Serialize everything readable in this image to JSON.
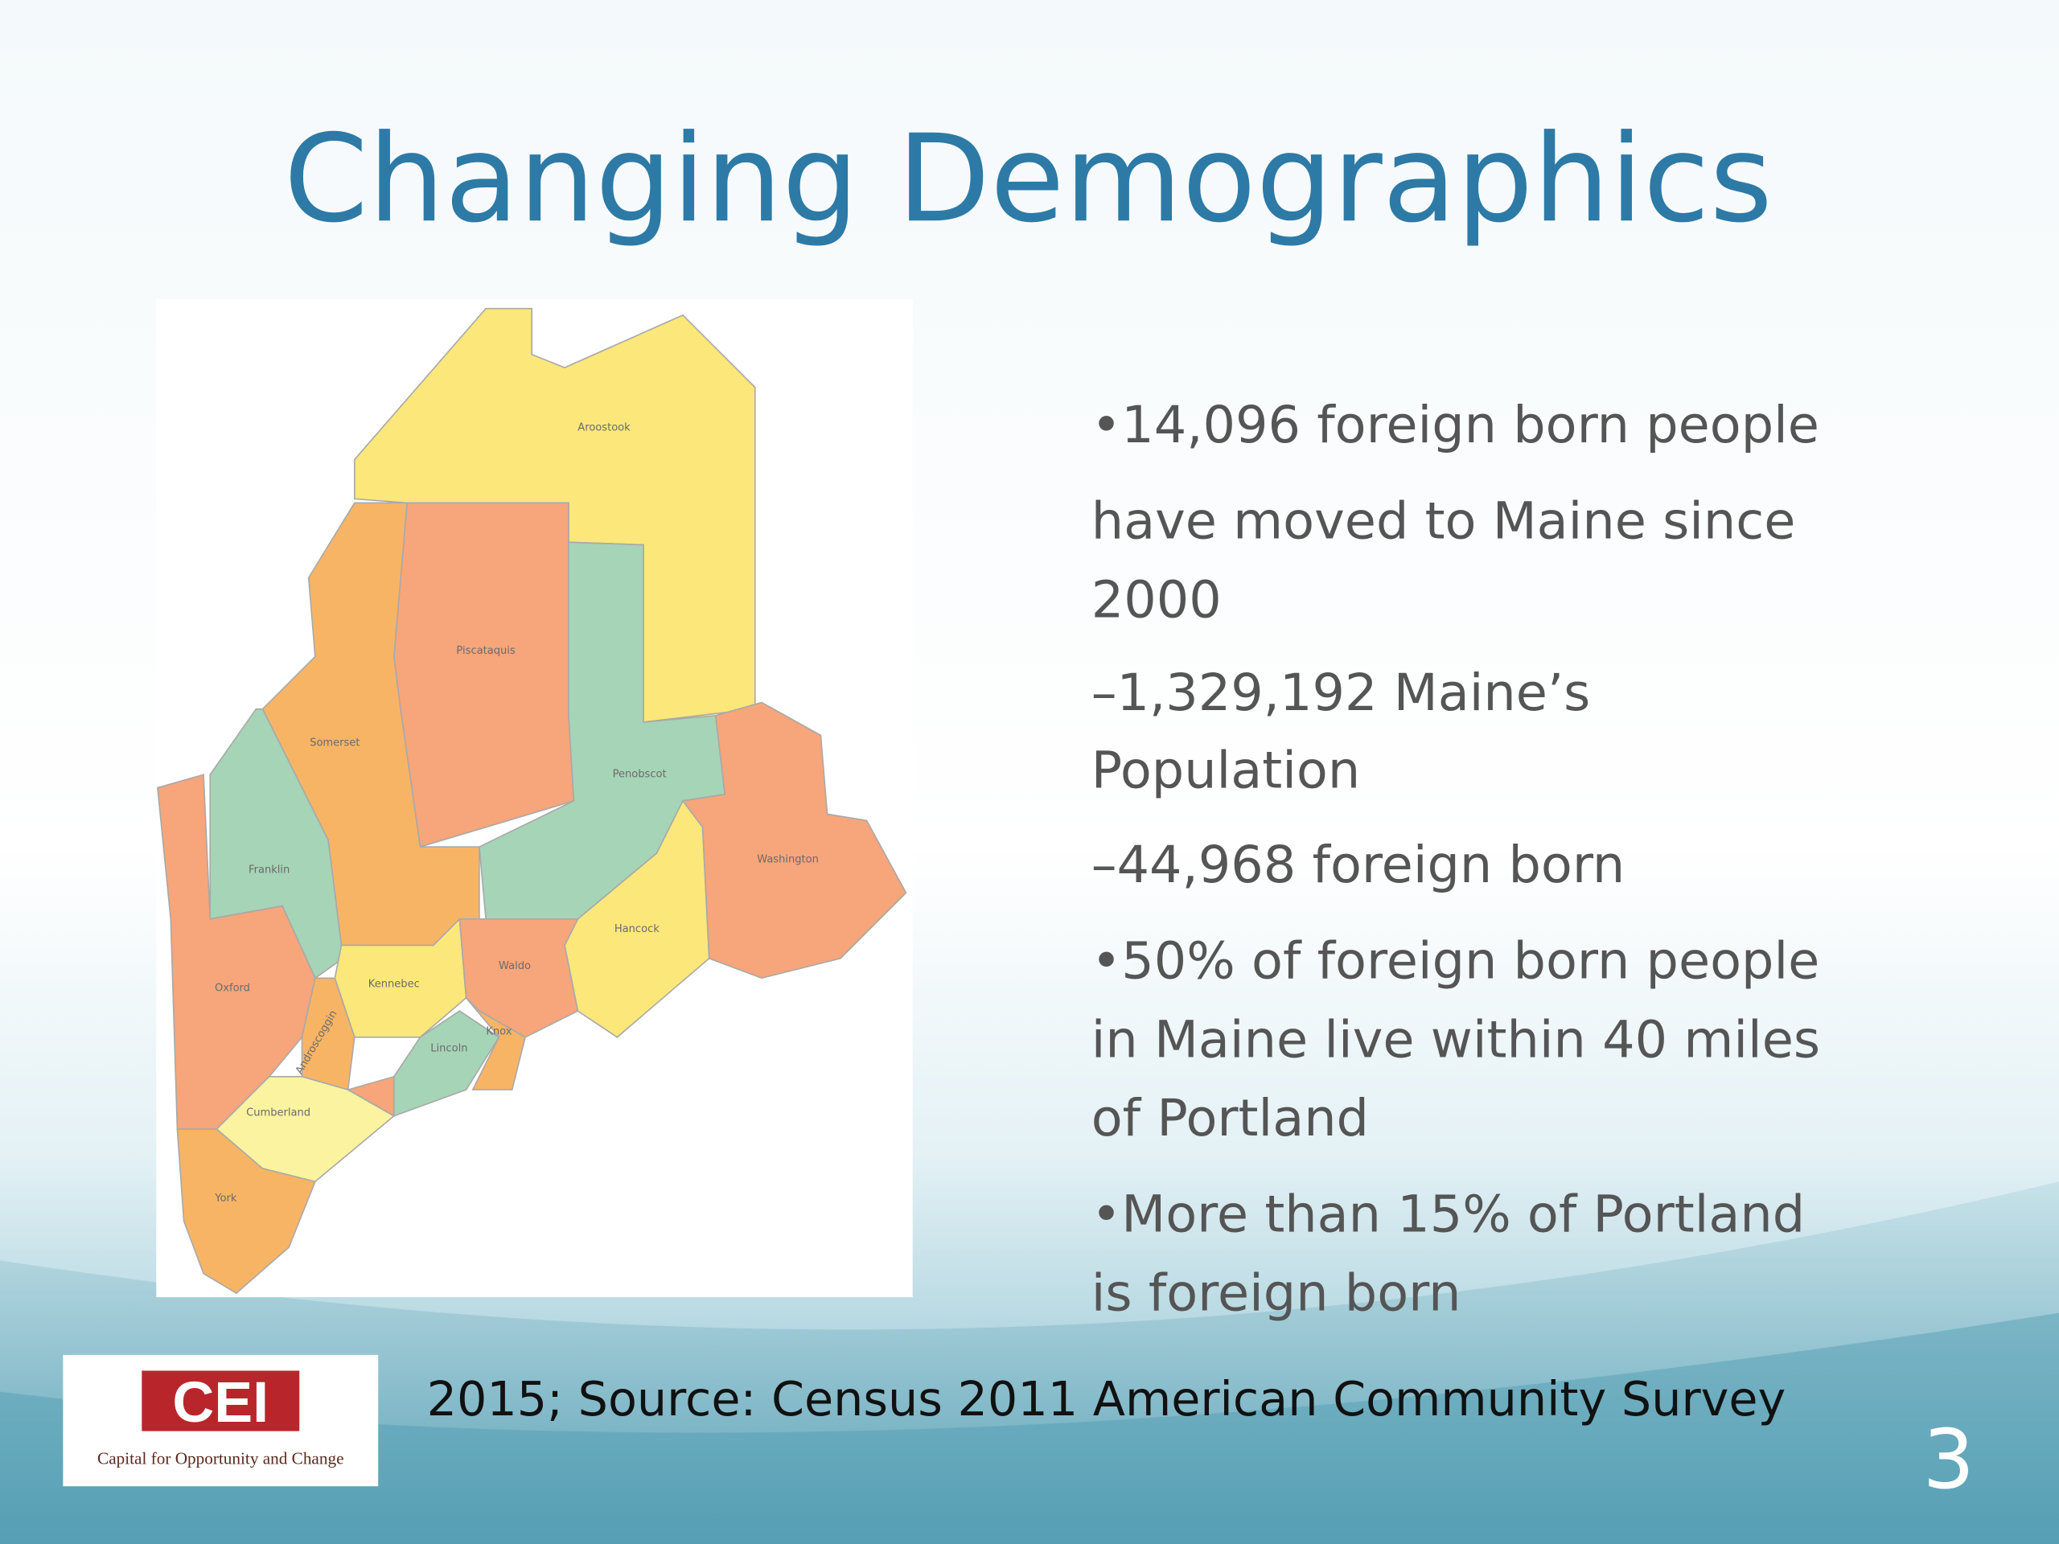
{
  "title": "Changing Demographics",
  "map": {
    "counties": [
      "Aroostook",
      "Piscataquis",
      "Somerset",
      "Penobscot",
      "Franklin",
      "Washington",
      "Oxford",
      "Hancock",
      "Kennebec",
      "Waldo",
      "Androscoggin",
      "Lincoln",
      "Knox",
      "Cumberland",
      "York"
    ]
  },
  "bullets": [
    {
      "lines": [
        "•14,096 foreign born people",
        "have moved to Maine since",
        "2000"
      ]
    },
    {
      "lines": [
        "–1,329,192 Maine’s",
        "Population"
      ]
    },
    {
      "lines": [
        "–44,968 foreign born"
      ]
    },
    {
      "lines": [
        "•50% of foreign born people",
        "in Maine live within 40 miles",
        "of Portland"
      ]
    },
    {
      "lines": [
        "•More than 15% of Portland",
        "is foreign born"
      ]
    }
  ],
  "source": "2015; Source: Census 2011 American Community Survey",
  "logo": {
    "name": "CEI",
    "tagline": "Capital for Opportunity and Change"
  },
  "page_number": "3"
}
